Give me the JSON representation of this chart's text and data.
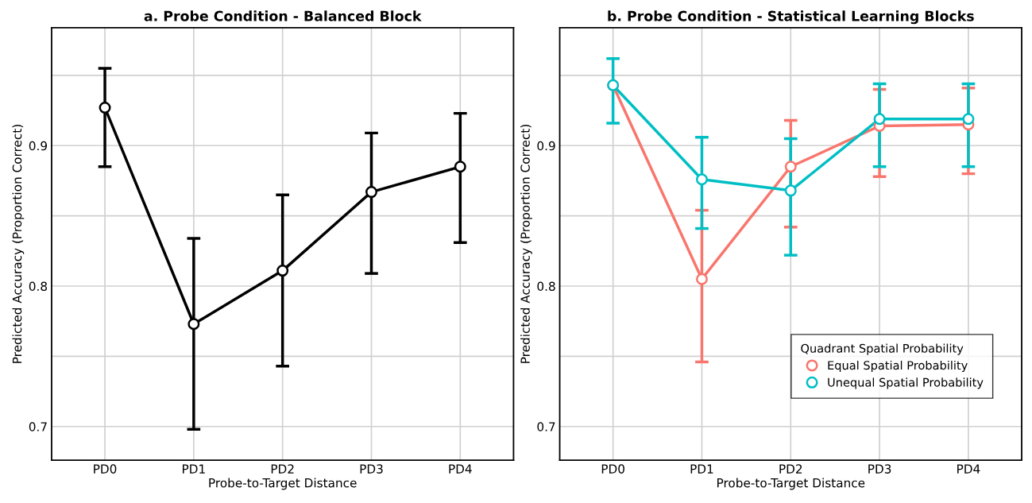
{
  "chart_data": [
    {
      "type": "line",
      "title": "a. Probe Condition - Balanced Block",
      "xlabel": "Probe-to-Target Distance",
      "ylabel": "Predicted Accuracy (Proportion Correct)",
      "categories": [
        "PD0",
        "PD1",
        "PD2",
        "PD3",
        "PD4"
      ],
      "ylim": [
        0.676,
        0.984
      ],
      "yticks": [
        0.7,
        {
          "value": 0.75,
          "label": null
        },
        0.8,
        {
          "value": 0.85,
          "label": null
        },
        0.9,
        {
          "value": 0.95,
          "label": null
        }
      ],
      "grid": true,
      "marker": "circle",
      "line_style": "solid",
      "series": [
        {
          "color": "#000000",
          "values": [
            0.927,
            0.773,
            0.811,
            0.867,
            0.885
          ],
          "errors": [
            [
              0.885,
              0.955
            ],
            [
              0.698,
              0.834
            ],
            [
              0.743,
              0.865
            ],
            [
              0.809,
              0.909
            ],
            [
              0.831,
              0.923
            ]
          ]
        }
      ]
    },
    {
      "type": "line",
      "title": "b. Probe Condition - Statistical Learning Blocks",
      "xlabel": "Probe-to-Target Distance",
      "ylabel": "Predicted Accuracy (Proportion Correct)",
      "legend_title": "Quadrant Spatial Probability",
      "legend": "bottom right",
      "categories": [
        "PD0",
        "PD1",
        "PD2",
        "PD3",
        "PD4"
      ],
      "ylim": [
        0.676,
        0.984
      ],
      "yticks": [
        0.7,
        {
          "value": 0.75,
          "label": null
        },
        0.8,
        {
          "value": 0.85,
          "label": null
        },
        0.9,
        {
          "value": 0.95,
          "label": null
        }
      ],
      "grid": true,
      "marker": "circle",
      "line_style": "solid",
      "series": [
        {
          "name": "Equal Spatial Probability",
          "color": "#f8766d",
          "values": [
            0.943,
            0.805,
            0.885,
            0.914,
            0.915
          ],
          "errors": [
            null,
            [
              0.746,
              0.854
            ],
            [
              0.842,
              0.918
            ],
            [
              0.878,
              0.94
            ],
            [
              0.88,
              0.941
            ]
          ]
        },
        {
          "name": "Unequal Spatial Probability",
          "color": "#00bfc4",
          "values": [
            0.943,
            0.876,
            0.868,
            0.919,
            0.919
          ],
          "errors": [
            [
              0.916,
              0.962
            ],
            [
              0.841,
              0.906
            ],
            [
              0.822,
              0.905
            ],
            [
              0.885,
              0.944
            ],
            [
              0.885,
              0.944
            ]
          ]
        }
      ]
    }
  ]
}
